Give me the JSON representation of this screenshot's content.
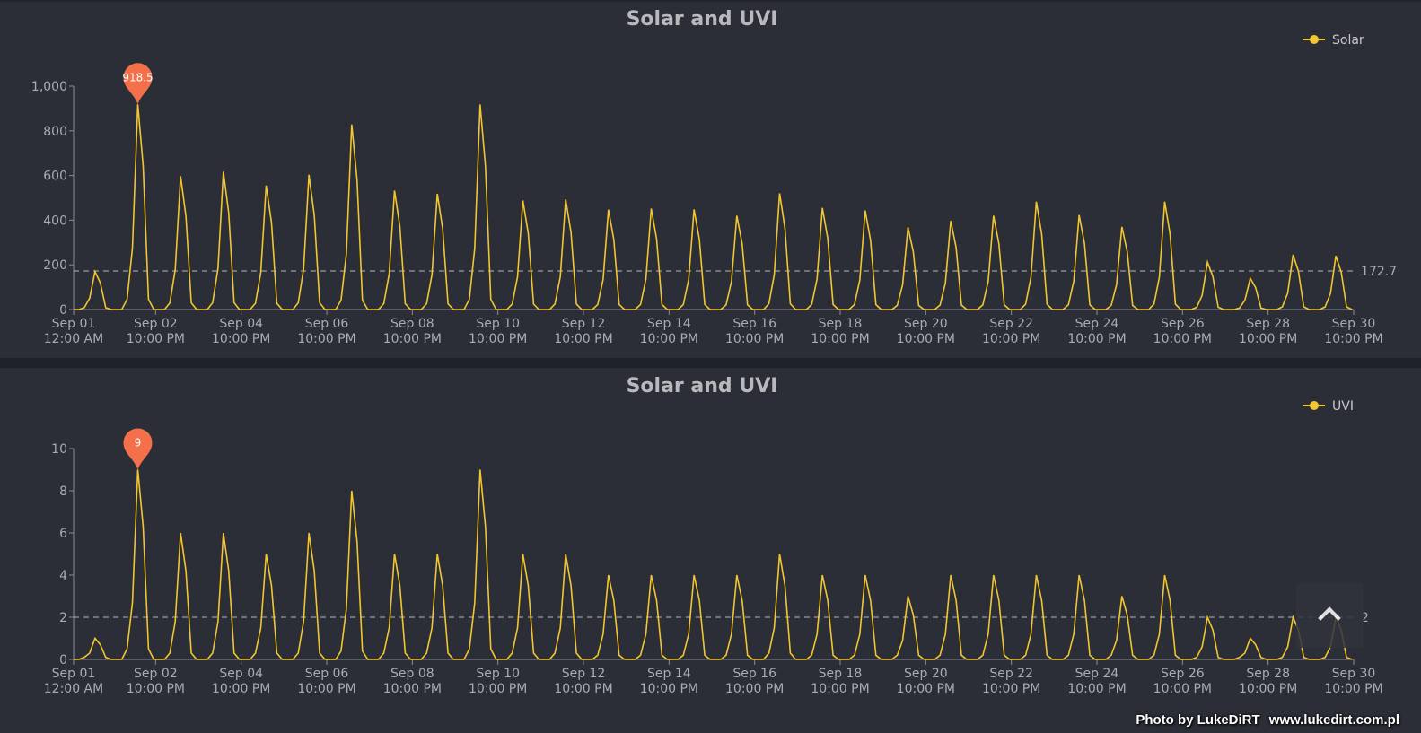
{
  "chart_data": [
    {
      "type": "line",
      "title": "Solar and UVI",
      "legend": "Solar",
      "legend_position": "top-right",
      "color": "#f2c62f",
      "ylim": [
        0,
        1000
      ],
      "yticks": [
        0,
        200,
        400,
        600,
        800,
        1000
      ],
      "ytick_labels": [
        "0",
        "200",
        "400",
        "600",
        "800",
        "1,000"
      ],
      "mean": 172.7,
      "mean_label": "172.7",
      "max_marker": "918.5",
      "daily_peaks": [
        170,
        918.5,
        597,
        617,
        555,
        603,
        828,
        532,
        518,
        918,
        488,
        493,
        447,
        452,
        448,
        420,
        520,
        455,
        443,
        368,
        397,
        420,
        483,
        423,
        370,
        483,
        212,
        140,
        245,
        240
      ]
    },
    {
      "type": "line",
      "title": "Solar and UVI",
      "legend": "UVI",
      "legend_position": "top-right",
      "color": "#f2c62f",
      "ylim": [
        0,
        10
      ],
      "yticks": [
        0,
        2,
        4,
        6,
        8,
        10
      ],
      "ytick_labels": [
        "0",
        "2",
        "4",
        "6",
        "8",
        "10"
      ],
      "mean": 2,
      "mean_label": "2",
      "max_marker": "9",
      "daily_peaks": [
        1,
        9,
        6,
        6,
        5,
        6,
        8,
        5,
        5,
        9,
        5,
        5,
        4,
        4,
        4,
        4,
        5,
        4,
        4,
        3,
        4,
        4,
        4,
        4,
        3,
        4,
        2,
        1,
        2,
        2
      ]
    }
  ],
  "x_axis": {
    "start_hour": 0,
    "end_hour": 718,
    "sample_hours": 3,
    "ticks": [
      {
        "h": 0,
        "l1": "Sep 01",
        "l2": "12:00 AM"
      },
      {
        "h": 46,
        "l1": "Sep 02",
        "l2": "10:00 PM"
      },
      {
        "h": 94,
        "l1": "Sep 04",
        "l2": "10:00 PM"
      },
      {
        "h": 142,
        "l1": "Sep 06",
        "l2": "10:00 PM"
      },
      {
        "h": 190,
        "l1": "Sep 08",
        "l2": "10:00 PM"
      },
      {
        "h": 238,
        "l1": "Sep 10",
        "l2": "10:00 PM"
      },
      {
        "h": 286,
        "l1": "Sep 12",
        "l2": "10:00 PM"
      },
      {
        "h": 334,
        "l1": "Sep 14",
        "l2": "10:00 PM"
      },
      {
        "h": 382,
        "l1": "Sep 16",
        "l2": "10:00 PM"
      },
      {
        "h": 430,
        "l1": "Sep 18",
        "l2": "10:00 PM"
      },
      {
        "h": 478,
        "l1": "Sep 20",
        "l2": "10:00 PM"
      },
      {
        "h": 526,
        "l1": "Sep 22",
        "l2": "10:00 PM"
      },
      {
        "h": 574,
        "l1": "Sep 24",
        "l2": "10:00 PM"
      },
      {
        "h": 622,
        "l1": "Sep 26",
        "l2": "10:00 PM"
      },
      {
        "h": 670,
        "l1": "Sep 28",
        "l2": "10:00 PM"
      },
      {
        "h": 718,
        "l1": "Sep 30",
        "l2": "10:00 PM"
      }
    ],
    "daily_profile": [
      0,
      0,
      0.05,
      0.3,
      1,
      0.7,
      0.05,
      0
    ]
  },
  "marker_color": "#f4704a",
  "credit": {
    "line1": "Photo by LukeDiRT",
    "line2": "www.lukedirt.com.pl"
  }
}
